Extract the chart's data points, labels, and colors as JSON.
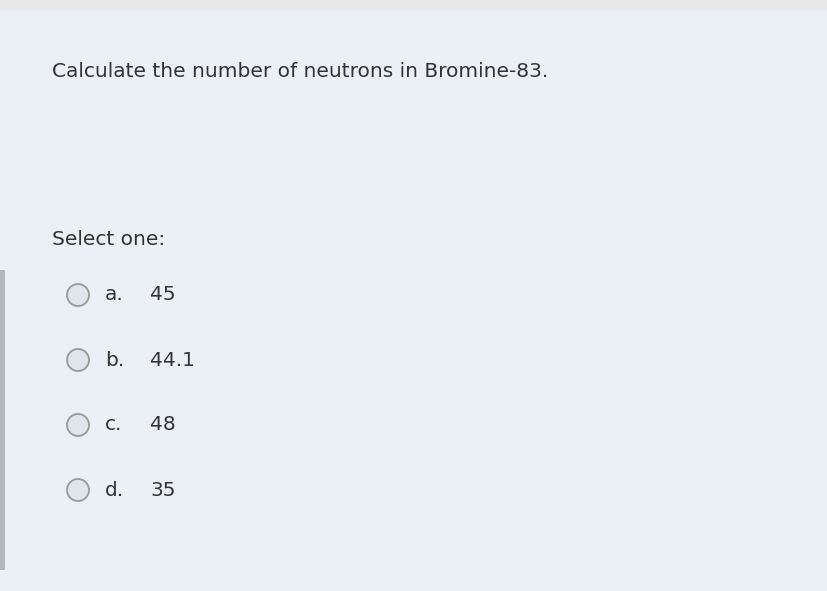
{
  "question": "Calculate the number of neutrons in Bromine-83.",
  "select_one_label": "Select one:",
  "options": [
    {
      "letter": "a.",
      "text": "45"
    },
    {
      "letter": "b.",
      "text": "44.1"
    },
    {
      "letter": "c.",
      "text": "48"
    },
    {
      "letter": "d.",
      "text": "35"
    }
  ],
  "bg_color": "#eaf0f5",
  "top_bar_color": "#e8e8e8",
  "text_color": "#333333",
  "circle_edge_color": "#999999",
  "circle_fill_color": "#dde5ed",
  "left_bar_color": "#b0b8c0",
  "question_fontsize": 14.5,
  "option_fontsize": 14.5,
  "select_fontsize": 14.5,
  "figsize": [
    8.28,
    5.91
  ],
  "dpi": 100
}
